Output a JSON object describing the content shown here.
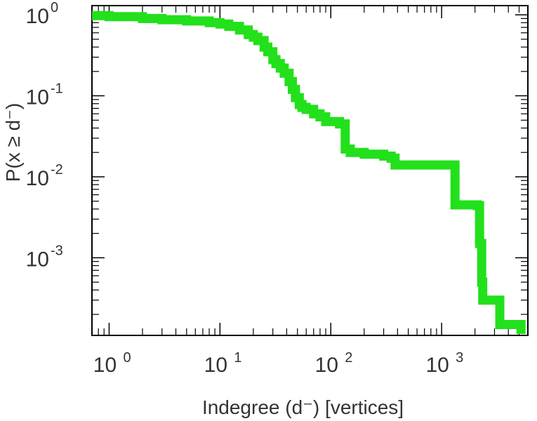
{
  "chart_data": {
    "type": "line",
    "xlabel": "Indegree (d⁻) [vertices]",
    "ylabel": "P(x ≥ d⁻)",
    "xscale": "log",
    "yscale": "log",
    "xlim": [
      0.7,
      6000
    ],
    "ylim": [
      0.00011,
      1.3
    ],
    "x_ticks": [
      {
        "value": 1,
        "base": "10",
        "exp": "0"
      },
      {
        "value": 10,
        "base": "10",
        "exp": "1"
      },
      {
        "value": 100,
        "base": "10",
        "exp": "2"
      },
      {
        "value": 1000,
        "base": "10",
        "exp": "3"
      }
    ],
    "y_ticks": [
      {
        "value": 1,
        "base": "10",
        "exp": "0"
      },
      {
        "value": 0.1,
        "base": "10",
        "exp": "-1"
      },
      {
        "value": 0.01,
        "base": "10",
        "exp": "-2"
      },
      {
        "value": 0.001,
        "base": "10",
        "exp": "-3"
      }
    ],
    "grid": false,
    "legend": "none",
    "series": [
      {
        "color": "#22e01b",
        "x": [
          0.7,
          1,
          2,
          3,
          5,
          8,
          10,
          12,
          15,
          18,
          20,
          22,
          25,
          27,
          30,
          32,
          35,
          38,
          42,
          45,
          48,
          52,
          55,
          60,
          70,
          80,
          90,
          120,
          135,
          150,
          200,
          300,
          350,
          380,
          1300,
          1320,
          2000,
          2100,
          2200,
          2300,
          2350,
          3300,
          3350,
          5200
        ],
        "y": [
          0.98,
          0.95,
          0.9,
          0.87,
          0.84,
          0.8,
          0.77,
          0.72,
          0.65,
          0.57,
          0.53,
          0.48,
          0.4,
          0.35,
          0.28,
          0.25,
          0.22,
          0.19,
          0.15,
          0.12,
          0.095,
          0.078,
          0.072,
          0.068,
          0.06,
          0.055,
          0.048,
          0.045,
          0.022,
          0.02,
          0.019,
          0.018,
          0.017,
          0.014,
          0.014,
          0.0045,
          0.0045,
          0.0044,
          0.0015,
          0.0005,
          0.0003,
          0.0003,
          0.00015,
          0.00012
        ]
      }
    ]
  }
}
